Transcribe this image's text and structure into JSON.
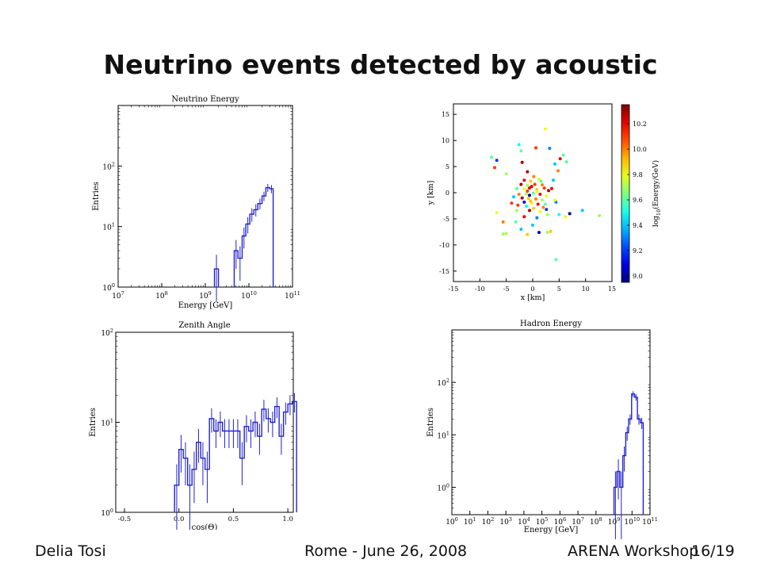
{
  "slide": {
    "title": "Neutrino events detected by acoustic",
    "footer_left": "Delia Tosi",
    "footer_center": "Rome - June 26, 2008",
    "footer_right": "ARENA Workshop",
    "page": "16/19"
  },
  "colors": {
    "histogram": "#2222cc",
    "axes": "#000000"
  },
  "chart_data": [
    {
      "id": "neutrino",
      "type": "bar",
      "style": "step-histogram-with-error-bars",
      "title": "Neutrino Energy",
      "xlabel": "Energy [GeV]",
      "ylabel": "Entries",
      "xscale": "log",
      "yscale": "log",
      "xlim": [
        10000000.0,
        100000000000.0
      ],
      "ylim": [
        1,
        1000
      ],
      "xticks": [
        {
          "v": 10000000.0,
          "b": "10",
          "e": "7"
        },
        {
          "v": 100000000.0,
          "b": "10",
          "e": "8"
        },
        {
          "v": 1000000000.0,
          "b": "10",
          "e": "9"
        },
        {
          "v": 10000000000.0,
          "b": "10",
          "e": "10"
        },
        {
          "v": 100000000000.0,
          "b": "10",
          "e": "11"
        }
      ],
      "yticks": [
        {
          "v": 1,
          "b": "10",
          "e": "0"
        },
        {
          "v": 10,
          "b": "10",
          "e": "1"
        },
        {
          "v": 100,
          "b": "10",
          "e": "2"
        }
      ],
      "bins": [
        {
          "x0": 1620000000.0,
          "x1": 2000000000.0,
          "y": 2
        },
        {
          "x0": 4600000000.0,
          "x1": 5600000000.0,
          "y": 4
        },
        {
          "x0": 5600000000.0,
          "x1": 7000000000.0,
          "y": 3
        },
        {
          "x0": 7000000000.0,
          "x1": 8500000000.0,
          "y": 7
        },
        {
          "x0": 8500000000.0,
          "x1": 10500000000.0,
          "y": 11
        },
        {
          "x0": 10500000000.0,
          "x1": 13000000000.0,
          "y": 16
        },
        {
          "x0": 13000000000.0,
          "x1": 16000000000.0,
          "y": 19
        },
        {
          "x0": 16000000000.0,
          "x1": 20000000000.0,
          "y": 24
        },
        {
          "x0": 20000000000.0,
          "x1": 24500000000.0,
          "y": 32
        },
        {
          "x0": 24500000000.0,
          "x1": 30000000000.0,
          "y": 44
        },
        {
          "x0": 30000000000.0,
          "x1": 36000000000.0,
          "y": 42
        }
      ]
    },
    {
      "id": "scatter",
      "type": "scatter",
      "xlabel": "x [km]",
      "ylabel": "y [km]",
      "xlim": [
        -15,
        15
      ],
      "ylim": [
        -17,
        17
      ],
      "xticks": [
        -15,
        -10,
        -5,
        0,
        5,
        10,
        15
      ],
      "yticks": [
        -15,
        -10,
        -5,
        0,
        5,
        10,
        15
      ],
      "colorbar": {
        "label": "log10(Energy/GeV)",
        "label_base": "log",
        "label_sub": "10",
        "label_rest": "(Energy/GeV)",
        "min": 8.95,
        "max": 10.35,
        "ticks": [
          9.0,
          9.2,
          9.4,
          9.6,
          9.8,
          10.0,
          10.2
        ]
      },
      "points": [
        {
          "x": -7.8,
          "y": 6.8,
          "c": 9.6
        },
        {
          "x": -7.2,
          "y": 4.8,
          "c": 10.1
        },
        {
          "x": -6.8,
          "y": 6.2,
          "c": 9.2
        },
        {
          "x": -2.6,
          "y": 9.2,
          "c": 9.5
        },
        {
          "x": -2.2,
          "y": 8.0,
          "c": 9.6
        },
        {
          "x": -2.0,
          "y": 5.8,
          "c": 10.3
        },
        {
          "x": 0.6,
          "y": 8.6,
          "c": 10.1
        },
        {
          "x": 2.4,
          "y": 12.2,
          "c": 9.8
        },
        {
          "x": 3.2,
          "y": 8.5,
          "c": 9.3
        },
        {
          "x": 4.2,
          "y": 5.5,
          "c": 9.4
        },
        {
          "x": 5.2,
          "y": 6.5,
          "c": 10.2
        },
        {
          "x": 5.8,
          "y": 7.2,
          "c": 9.6
        },
        {
          "x": 6.4,
          "y": 5.9,
          "c": 9.6
        },
        {
          "x": 4.8,
          "y": 4.2,
          "c": 10.0
        },
        {
          "x": 3.9,
          "y": 2.4,
          "c": 9.4
        },
        {
          "x": -5.0,
          "y": 3.6,
          "c": 9.7
        },
        {
          "x": -1.0,
          "y": 4.0,
          "c": 10.3
        },
        {
          "x": 0.2,
          "y": 3.1,
          "c": 10.0
        },
        {
          "x": 1.2,
          "y": 2.6,
          "c": 9.8
        },
        {
          "x": -1.6,
          "y": 2.4,
          "c": 10.2
        },
        {
          "x": -0.4,
          "y": 2.2,
          "c": 9.9
        },
        {
          "x": -2.2,
          "y": 1.6,
          "c": 10.3
        },
        {
          "x": -1.0,
          "y": 1.4,
          "c": 9.7
        },
        {
          "x": 0.4,
          "y": 1.6,
          "c": 10.1
        },
        {
          "x": 1.8,
          "y": 1.5,
          "c": 10.0
        },
        {
          "x": -3.0,
          "y": 0.8,
          "c": 9.6
        },
        {
          "x": -1.6,
          "y": 0.7,
          "c": 9.8
        },
        {
          "x": -0.6,
          "y": 0.9,
          "c": 10.2
        },
        {
          "x": 0.8,
          "y": 0.6,
          "c": 9.9
        },
        {
          "x": 2.2,
          "y": 0.9,
          "c": 10.1
        },
        {
          "x": 3.0,
          "y": 0.4,
          "c": 10.3
        },
        {
          "x": -2.6,
          "y": -0.3,
          "c": 10.0
        },
        {
          "x": -1.2,
          "y": -0.2,
          "c": 9.7
        },
        {
          "x": 0.1,
          "y": -0.1,
          "c": 9.6
        },
        {
          "x": 1.4,
          "y": -0.3,
          "c": 10.2
        },
        {
          "x": 2.6,
          "y": -0.6,
          "c": 9.8
        },
        {
          "x": -3.6,
          "y": -0.8,
          "c": 9.4
        },
        {
          "x": -2.0,
          "y": -1.0,
          "c": 10.3
        },
        {
          "x": -0.8,
          "y": -1.1,
          "c": 9.9
        },
        {
          "x": 0.6,
          "y": -1.2,
          "c": 10.0
        },
        {
          "x": 1.8,
          "y": -1.4,
          "c": 9.7
        },
        {
          "x": -1.6,
          "y": -1.8,
          "c": 9.1
        },
        {
          "x": -0.2,
          "y": -2.0,
          "c": 9.8
        },
        {
          "x": 1.0,
          "y": -2.2,
          "c": 10.2
        },
        {
          "x": 2.4,
          "y": -2.2,
          "c": 9.6
        },
        {
          "x": -2.8,
          "y": -2.4,
          "c": 10.1
        },
        {
          "x": -1.2,
          "y": -2.6,
          "c": 9.5
        },
        {
          "x": 0.2,
          "y": -3.0,
          "c": 9.9
        },
        {
          "x": -0.6,
          "y": -0.5,
          "c": 9.0
        },
        {
          "x": -3.0,
          "y": -3.4,
          "c": 9.7
        },
        {
          "x": -0.6,
          "y": -3.4,
          "c": 10.3
        },
        {
          "x": 1.4,
          "y": -3.6,
          "c": 9.8
        },
        {
          "x": 2.0,
          "y": -2.8,
          "c": 10.0
        },
        {
          "x": 0.8,
          "y": 0.2,
          "c": 9.8
        },
        {
          "x": -1.0,
          "y": 0.3,
          "c": 10.1
        },
        {
          "x": 1.6,
          "y": 2.2,
          "c": 9.6
        },
        {
          "x": -0.2,
          "y": 1.2,
          "c": 10.2
        },
        {
          "x": -0.4,
          "y": -1.6,
          "c": 9.9
        },
        {
          "x": 4.4,
          "y": -1.8,
          "c": 9.3
        },
        {
          "x": 2.8,
          "y": -4.2,
          "c": 9.7
        },
        {
          "x": 4.2,
          "y": -1.4,
          "c": 9.8
        },
        {
          "x": 5.0,
          "y": -4.2,
          "c": 9.5
        },
        {
          "x": 7.0,
          "y": -4.0,
          "c": 9.0
        },
        {
          "x": 6.2,
          "y": -4.6,
          "c": 9.8
        },
        {
          "x": 9.4,
          "y": -3.4,
          "c": 9.4
        },
        {
          "x": 12.6,
          "y": -4.4,
          "c": 9.7
        },
        {
          "x": -6.8,
          "y": -3.8,
          "c": 9.8
        },
        {
          "x": -5.6,
          "y": -5.6,
          "c": 10.0
        },
        {
          "x": -3.2,
          "y": -5.6,
          "c": 9.6
        },
        {
          "x": -5.0,
          "y": -7.8,
          "c": 9.7
        },
        {
          "x": -5.6,
          "y": -7.9,
          "c": 9.7
        },
        {
          "x": -2.2,
          "y": -7.0,
          "c": 9.4
        },
        {
          "x": -1.0,
          "y": -8.0,
          "c": 9.9
        },
        {
          "x": 0.0,
          "y": -6.2,
          "c": 9.4
        },
        {
          "x": 1.2,
          "y": -7.6,
          "c": 9.0
        },
        {
          "x": 2.8,
          "y": -7.6,
          "c": 9.7
        },
        {
          "x": 3.4,
          "y": -7.4,
          "c": 9.9
        },
        {
          "x": 4.4,
          "y": -12.8,
          "c": 9.6
        },
        {
          "x": -1.6,
          "y": -4.6,
          "c": 10.2
        },
        {
          "x": 0.8,
          "y": -4.8,
          "c": 9.3
        },
        {
          "x": 2.6,
          "y": -3.2,
          "c": 9.2
        },
        {
          "x": -4.0,
          "y": -2.0,
          "c": 10.1
        },
        {
          "x": 3.6,
          "y": 0.8,
          "c": 10.2
        }
      ]
    },
    {
      "id": "zenith",
      "type": "bar",
      "style": "step-histogram-with-error-bars",
      "title": "Zenith Angle",
      "xlabel": "cos(Θ)",
      "ylabel": "Entries",
      "xscale": "linear",
      "yscale": "log",
      "xlim": [
        -0.58,
        1.05
      ],
      "ylim": [
        1,
        100
      ],
      "xticks": [
        {
          "v": -0.5,
          "t": "-0.5"
        },
        {
          "v": 0.0,
          "t": "0.0"
        },
        {
          "v": 0.5,
          "t": "0.5"
        },
        {
          "v": 1.0,
          "t": "1.0"
        }
      ],
      "yticks": [
        {
          "v": 1,
          "b": "10",
          "e": "0"
        },
        {
          "v": 10,
          "b": "10",
          "e": "1"
        },
        {
          "v": 100,
          "b": "10",
          "e": "2"
        }
      ],
      "bin_start": -0.04,
      "bin_width": 0.04,
      "values": [
        2,
        5,
        4,
        2,
        3,
        6,
        4,
        3,
        11,
        8,
        10,
        8,
        8,
        8,
        8,
        4,
        9,
        8,
        10,
        7,
        14,
        11,
        10,
        15,
        7,
        13,
        16,
        17
      ]
    },
    {
      "id": "hadron",
      "type": "bar",
      "style": "step-histogram-with-error-bars",
      "title": "Hadron Energy",
      "xlabel": "Energy [GeV]",
      "ylabel": "Entries",
      "xscale": "log",
      "yscale": "log",
      "xlim": [
        1,
        100000000000.0
      ],
      "ylim": [
        0.3,
        1000
      ],
      "xticks": [
        {
          "v": 1,
          "b": "10",
          "e": "0"
        },
        {
          "v": 10,
          "b": "10",
          "e": "1"
        },
        {
          "v": 100,
          "b": "10",
          "e": "2"
        },
        {
          "v": 1000.0,
          "b": "10",
          "e": "3"
        },
        {
          "v": 10000.0,
          "b": "10",
          "e": "4"
        },
        {
          "v": 100000.0,
          "b": "10",
          "e": "5"
        },
        {
          "v": 1000000.0,
          "b": "10",
          "e": "6"
        },
        {
          "v": 10000000.0,
          "b": "10",
          "e": "7"
        },
        {
          "v": 100000000.0,
          "b": "10",
          "e": "8"
        },
        {
          "v": 1000000000.0,
          "b": "10",
          "e": "9"
        },
        {
          "v": 10000000000.0,
          "b": "10",
          "e": "10"
        },
        {
          "v": 100000000000.0,
          "b": "10",
          "e": "11"
        }
      ],
      "yticks": [
        {
          "v": 1,
          "b": "10",
          "e": "0"
        },
        {
          "v": 10,
          "b": "10",
          "e": "1"
        },
        {
          "v": 100,
          "b": "10",
          "e": "2"
        }
      ],
      "bins": [
        {
          "x0": 1000000000.0,
          "x1": 1450000000.0,
          "y": 1
        },
        {
          "x0": 1450000000.0,
          "x1": 2100000000.0,
          "y": 2
        },
        {
          "x0": 2100000000.0,
          "x1": 3100000000.0,
          "y": 1
        },
        {
          "x0": 3100000000.0,
          "x1": 4500000000.0,
          "y": 4
        },
        {
          "x0": 4500000000.0,
          "x1": 6500000000.0,
          "y": 11
        },
        {
          "x0": 6500000000.0,
          "x1": 9500000000.0,
          "y": 20
        },
        {
          "x0": 9500000000.0,
          "x1": 14000000000.0,
          "y": 60
        },
        {
          "x0": 14000000000.0,
          "x1": 20000000000.0,
          "y": 52
        },
        {
          "x0": 20000000000.0,
          "x1": 29000000000.0,
          "y": 20
        },
        {
          "x0": 29000000000.0,
          "x1": 42000000000.0,
          "y": 17
        }
      ]
    }
  ]
}
